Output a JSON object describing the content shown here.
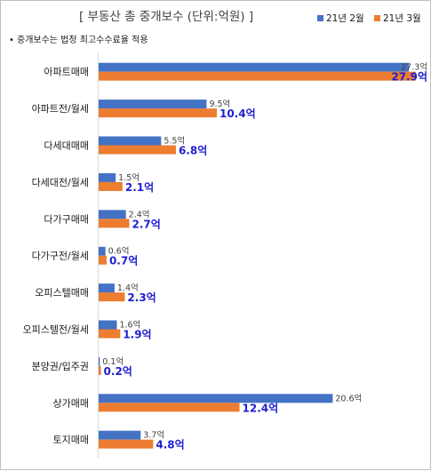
{
  "chart_data": {
    "type": "bar",
    "orientation": "horizontal",
    "title": "[ 부동산 총 중개보수 (단위:억원) ]",
    "note": "중개보수는 법정 최고수수료율 적용",
    "note_bullet": "•",
    "value_suffix": "억",
    "categories": [
      "아파트매매",
      "아파트전/월세",
      "다세대매매",
      "다세대전/월세",
      "다가구매매",
      "다가구전/월세",
      "오피스텔매매",
      "오피스텔전/월세",
      "분양권/입주권",
      "상가매매",
      "토지매매"
    ],
    "series": [
      {
        "name": "21년 2월",
        "color": "#4472c4",
        "values": [
          27.3,
          9.5,
          5.5,
          1.5,
          2.4,
          0.6,
          1.4,
          1.6,
          0.1,
          20.6,
          3.7
        ]
      },
      {
        "name": "21년 3월",
        "color": "#ed7d31",
        "values": [
          27.9,
          10.4,
          6.8,
          2.1,
          2.7,
          0.7,
          2.3,
          1.9,
          0.2,
          12.4,
          4.8
        ]
      }
    ],
    "xlim": [
      0,
      30
    ],
    "legend_position": "top-right",
    "grid": false
  }
}
